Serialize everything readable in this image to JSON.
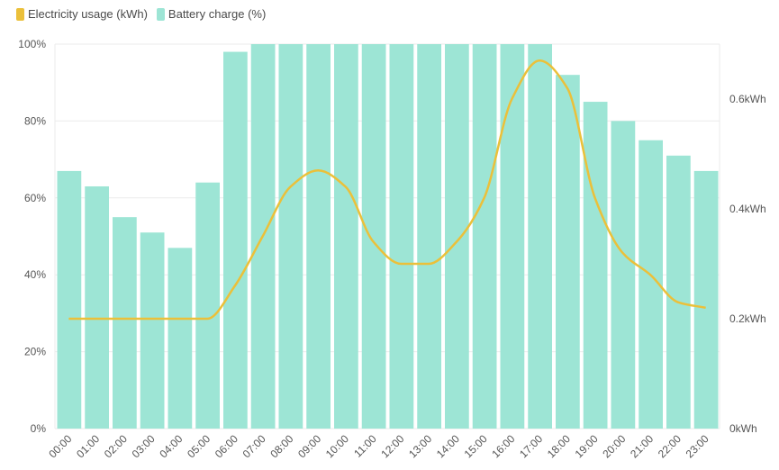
{
  "chart_data": {
    "type": "bar",
    "categories": [
      "00:00",
      "01:00",
      "02:00",
      "03:00",
      "04:00",
      "05:00",
      "06:00",
      "07:00",
      "08:00",
      "09:00",
      "10:00",
      "11:00",
      "12:00",
      "13:00",
      "14:00",
      "15:00",
      "16:00",
      "17:00",
      "18:00",
      "19:00",
      "20:00",
      "21:00",
      "22:00",
      "23:00"
    ],
    "series": [
      {
        "name": "Electricity usage (kWh)",
        "type": "line",
        "axis": "right",
        "values": [
          0.2,
          0.2,
          0.2,
          0.2,
          0.2,
          0.2,
          0.26,
          0.35,
          0.44,
          0.47,
          0.44,
          0.34,
          0.3,
          0.3,
          0.34,
          0.42,
          0.6,
          0.67,
          0.62,
          0.42,
          0.32,
          0.28,
          0.23,
          0.22
        ]
      },
      {
        "name": "Battery charge (%)",
        "type": "bar",
        "axis": "left",
        "values": [
          67,
          63,
          55,
          51,
          47,
          64,
          98,
          100,
          100,
          100,
          100,
          100,
          100,
          100,
          100,
          100,
          100,
          100,
          92,
          85,
          80,
          75,
          71,
          67
        ]
      }
    ],
    "left_axis": {
      "ticks": [
        "0%",
        "20%",
        "40%",
        "60%",
        "80%",
        "100%"
      ],
      "ylim": [
        0,
        100
      ]
    },
    "right_axis": {
      "ticks": [
        "0kWh",
        "0.2kWh",
        "0.4kWh",
        "0.6kWh"
      ],
      "ylim": [
        0,
        0.7
      ]
    },
    "colors": {
      "line": "#ebc03a",
      "bar": "#9de5d5",
      "grid": "#ebebeb",
      "text": "#555555"
    },
    "legend": {
      "placement": "top-left"
    },
    "grid": true
  }
}
